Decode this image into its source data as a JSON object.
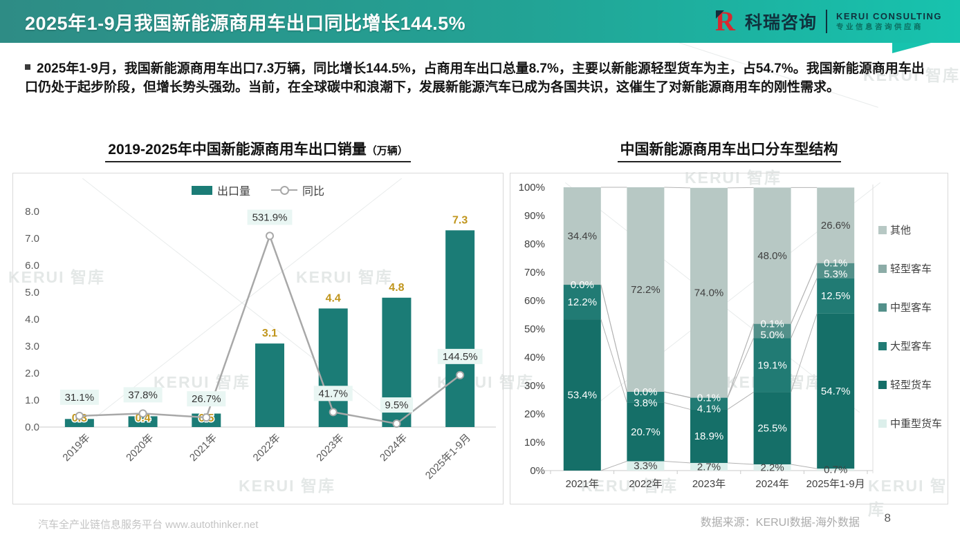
{
  "header": {
    "title": "2025年1-9月我国新能源商用车出口同比增长144.5%",
    "logo": {
      "mark": "R",
      "brand_cn": "科瑞咨询",
      "brand_en": "KERUI CONSULTING",
      "tagline": "专业信息咨询供应商"
    }
  },
  "summary": "2025年1-9月，我国新能源商用车出口7.3万辆，同比增长144.5%，占商用车出口总量8.7%，主要以新能源轻型货车为主，占54.7%。我国新能源商用车出口仍处于起步阶段，但增长势头强劲。当前，在全球碳中和浪潮下，发展新能源汽车已成为各国共识，这催生了对新能源商用车的刚性需求。",
  "watermark": "KERUI 智库",
  "footer": {
    "left": "汽车全产业链信息服务平台 www.autothinker.net",
    "source": "数据来源：KERUI数据-海外数据",
    "page": "8"
  },
  "chart_data": [
    {
      "type": "bar",
      "title": "2019-2025年中国新能源商用车出口销量",
      "title_unit": "（万辆）",
      "categories": [
        "2019年",
        "2020年",
        "2021年",
        "2022年",
        "2023年",
        "2024年",
        "2025年1-9月"
      ],
      "ylim": [
        0,
        8
      ],
      "yticks": [
        "0.0",
        "1.0",
        "2.0",
        "3.0",
        "4.0",
        "5.0",
        "6.0",
        "7.0",
        "8.0"
      ],
      "y2lim": [
        0,
        600
      ],
      "grid": false,
      "legend_position": "top",
      "series": [
        {
          "name": "出口量",
          "type": "bar",
          "color": "#1b7c76",
          "values": [
            0.3,
            0.4,
            0.5,
            3.1,
            4.4,
            4.8,
            7.3
          ],
          "labels": [
            "0.3",
            "0.4",
            "0.5",
            "3.1",
            "4.4",
            "4.8",
            "7.3"
          ]
        },
        {
          "name": "同比",
          "type": "line",
          "color": "#a8a8a8",
          "axis": "secondary",
          "values": [
            31.1,
            37.8,
            26.7,
            531.9,
            41.7,
            9.5,
            144.5
          ],
          "labels": [
            "31.1%",
            "37.8%",
            "26.7%",
            "531.9%",
            "41.7%",
            "9.5%",
            "144.5%"
          ]
        }
      ],
      "label_box_color": "#e9f6f3"
    },
    {
      "type": "stacked-bar-100",
      "title": "中国新能源商用车出口分车型结构",
      "categories": [
        "2021年",
        "2022年",
        "2023年",
        "2024年",
        "2025年1-9月"
      ],
      "ylim": [
        0,
        100
      ],
      "yticks": [
        "0%",
        "10%",
        "20%",
        "30%",
        "40%",
        "50%",
        "60%",
        "70%",
        "80%",
        "90%",
        "100%"
      ],
      "grid": false,
      "legend_position": "right",
      "stack_order_note": "series listed bottom-to-top of stack",
      "series": [
        {
          "name": "中重型货车",
          "color": "#dcefeb",
          "label_color": "#404040",
          "values": [
            0,
            3.3,
            2.7,
            2.2,
            0.7
          ],
          "labels": [
            "",
            "3.3%",
            "2.7%",
            "2.2%",
            "0.7%"
          ]
        },
        {
          "name": "轻型货车",
          "color": "#156f68",
          "label_color": "#ffffff",
          "values": [
            53.4,
            20.7,
            18.9,
            25.5,
            54.7
          ],
          "labels": [
            "53.4%",
            "20.7%",
            "18.9%",
            "25.5%",
            "54.7%"
          ]
        },
        {
          "name": "大型客车",
          "color": "#217b74",
          "label_color": "#ffffff",
          "values": [
            12.2,
            3.8,
            4.1,
            19.1,
            12.5
          ],
          "labels": [
            "12.2%",
            "3.8%",
            "4.1%",
            "19.1%",
            "12.5%"
          ]
        },
        {
          "name": "中型客车",
          "color": "#53908a",
          "label_color": "#ffffff",
          "values": [
            0,
            0,
            0.1,
            5.0,
            5.3
          ],
          "labels": [
            "0.0%",
            "0.0%",
            "0.1%",
            "5.0%",
            "5.3%"
          ]
        },
        {
          "name": "轻型客车",
          "color": "#8caca7",
          "label_color": "#ffffff",
          "values": [
            0,
            0,
            0,
            0.1,
            0.1
          ],
          "labels": [
            "",
            "",
            "",
            "0.1%",
            "0.1%"
          ]
        },
        {
          "name": "其他",
          "color": "#b7c8c4",
          "label_color": "#404040",
          "values": [
            34.4,
            72.2,
            74.0,
            48.0,
            26.6
          ],
          "labels": [
            "34.4%",
            "72.2%",
            "74.0%",
            "48.0%",
            "26.6%"
          ]
        }
      ]
    }
  ]
}
